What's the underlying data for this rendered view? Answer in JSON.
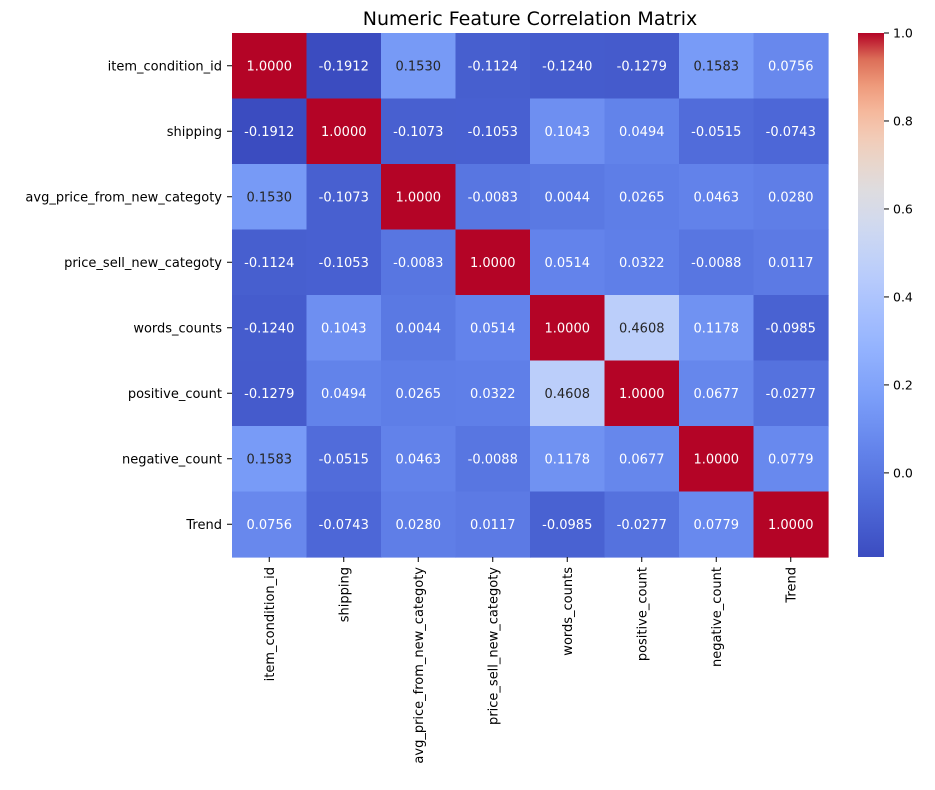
{
  "chart_data": {
    "type": "heatmap",
    "title": "Numeric Feature Correlation Matrix",
    "xlabel": "",
    "ylabel": "",
    "categories": [
      "item_condition_id",
      "shipping",
      "avg_price_from_new_categoty",
      "price_sell_new_categoty",
      "words_counts",
      "positive_count",
      "negative_count",
      "Trend"
    ],
    "matrix": [
      [
        1.0,
        -0.1912,
        0.153,
        -0.1124,
        -0.124,
        -0.1279,
        0.1583,
        0.0756
      ],
      [
        -0.1912,
        1.0,
        -0.1073,
        -0.1053,
        0.1043,
        0.0494,
        -0.0515,
        -0.0743
      ],
      [
        0.153,
        -0.1073,
        1.0,
        -0.0083,
        0.0044,
        0.0265,
        0.0463,
        0.028
      ],
      [
        -0.1124,
        -0.1053,
        -0.0083,
        1.0,
        0.0514,
        0.0322,
        -0.0088,
        0.0117
      ],
      [
        -0.124,
        0.1043,
        0.0044,
        0.0514,
        1.0,
        0.4608,
        0.1178,
        -0.0985
      ],
      [
        -0.1279,
        0.0494,
        0.0265,
        0.0322,
        0.4608,
        1.0,
        0.0677,
        -0.0277
      ],
      [
        0.1583,
        -0.0515,
        0.0463,
        -0.0088,
        0.1178,
        0.0677,
        1.0,
        0.0779
      ],
      [
        0.0756,
        -0.0743,
        0.028,
        0.0117,
        -0.0985,
        -0.0277,
        0.0779,
        1.0
      ]
    ],
    "value_format": "4 decimals",
    "colormap": "coolwarm",
    "color_range": [
      -0.1912,
      1.0
    ],
    "colorbar_ticks": [
      0.0,
      0.2,
      0.4,
      0.6,
      0.8,
      1.0
    ],
    "legend_placement": "right colorbar",
    "grid": false
  }
}
